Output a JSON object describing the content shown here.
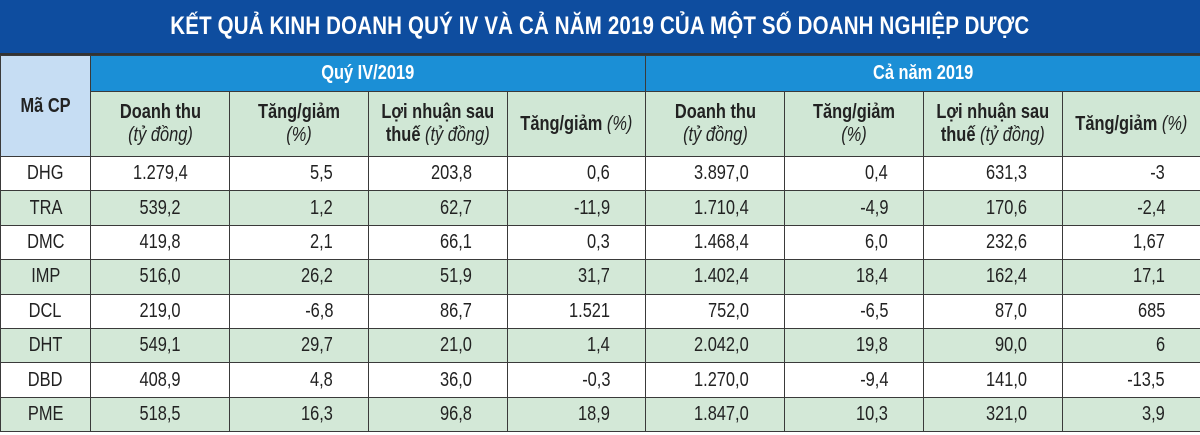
{
  "title": "KẾT QUẢ KINH DOANH QUÝ IV VÀ CẢ NĂM 2019 CỦA MỘT SỐ DOANH NGHIỆP DƯỢC",
  "code_header": "Mã CP",
  "groups": [
    "Quý IV/2019",
    "Cả năm 2019"
  ],
  "columns": [
    {
      "bold": "Doanh thu",
      "italic": "(tỷ đồng)"
    },
    {
      "bold": "Tăng/giảm",
      "italic": "(%)"
    },
    {
      "bold": "Lợi nhuận sau thuế",
      "italic": "(tỷ đồng)"
    },
    {
      "bold": "Tăng/giảm",
      "italic": "(%)"
    },
    {
      "bold": "Doanh thu",
      "italic": "(tỷ đồng)"
    },
    {
      "bold": "Tăng/giảm",
      "italic": "(%)"
    },
    {
      "bold": "Lợi nhuận sau thuế",
      "italic": "(tỷ đồng)"
    },
    {
      "bold": "Tăng/giảm",
      "italic": "(%)"
    }
  ],
  "header_labels": {
    "rev": "Doanh thu",
    "unit": "(tỷ đồng)",
    "chg": "Tăng/giảm",
    "pct": "(%)",
    "profit1": "Lợi nhuận sau",
    "profit2": "thuế"
  },
  "colors": {
    "title_bg": "#0e4d9f",
    "group_bg": "#1b8fd6",
    "header_bg": "#d0e7d5",
    "alt_row": "#d3e8d7",
    "code_header_bg": "#c6ddf3"
  },
  "rows": [
    {
      "code": "DHG",
      "values": [
        "1.279,4",
        "5,5",
        "203,8",
        "0,6",
        "3.897,0",
        "0,4",
        "631,3",
        "-3"
      ]
    },
    {
      "code": "TRA",
      "values": [
        "539,2",
        "1,2",
        "62,7",
        "-11,9",
        "1.710,4",
        "-4,9",
        "170,6",
        "-2,4"
      ]
    },
    {
      "code": "DMC",
      "values": [
        "419,8",
        "2,1",
        "66,1",
        "0,3",
        "1.468,4",
        "6,0",
        "232,6",
        "1,67"
      ]
    },
    {
      "code": "IMP",
      "values": [
        "516,0",
        "26,2",
        "51,9",
        "31,7",
        "1.402,4",
        "18,4",
        "162,4",
        "17,1"
      ]
    },
    {
      "code": "DCL",
      "values": [
        "219,0",
        "-6,8",
        "86,7",
        "1.521",
        "752,0",
        "-6,5",
        "87,0",
        "685"
      ]
    },
    {
      "code": "DHT",
      "values": [
        "549,1",
        "29,7",
        "21,0",
        "1,4",
        "2.042,0",
        "19,8",
        "90,0",
        "6"
      ]
    },
    {
      "code": "DBD",
      "values": [
        "408,9",
        "4,8",
        "36,0",
        "-0,3",
        "1.270,0",
        "-9,4",
        "141,0",
        "-13,5"
      ]
    },
    {
      "code": "PME",
      "values": [
        "518,5",
        "16,3",
        "96,8",
        "18,9",
        "1.847,0",
        "10,3",
        "321,0",
        "3,9"
      ]
    }
  ]
}
